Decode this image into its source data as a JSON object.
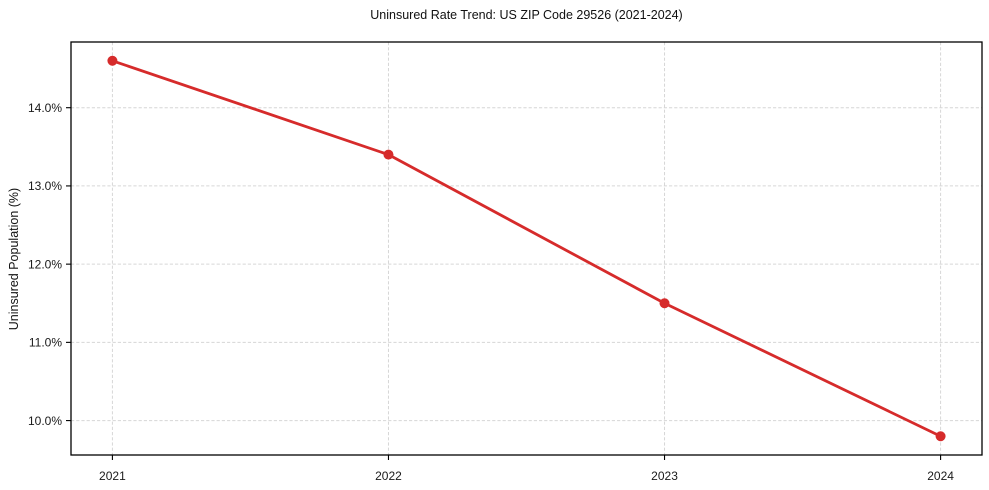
{
  "chart_data": {
    "type": "line",
    "title": "Uninsured Rate Trend: US ZIP Code 29526 (2021-2024)",
    "ylabel": "Uninsured Population (%)",
    "x": [
      2021,
      2022,
      2023,
      2024
    ],
    "x_tick_labels": [
      "2021",
      "2022",
      "2023",
      "2024"
    ],
    "values": [
      14.6,
      13.4,
      11.5,
      9.8
    ],
    "y_ticks": [
      10.0,
      11.0,
      12.0,
      13.0,
      14.0
    ],
    "y_tick_labels": [
      "10.0%",
      "11.0%",
      "12.0%",
      "13.0%",
      "14.0%"
    ],
    "xlim": [
      2020.85,
      2024.15
    ],
    "ylim": [
      9.56,
      14.84
    ],
    "grid": true,
    "grid_style": "dashed",
    "legend": "none",
    "colors": {
      "line": "#d62b2b",
      "marker": "#d62b2b",
      "grid": "#d6d6d6",
      "frame": "#000000",
      "text": "#1a1a1a"
    }
  }
}
